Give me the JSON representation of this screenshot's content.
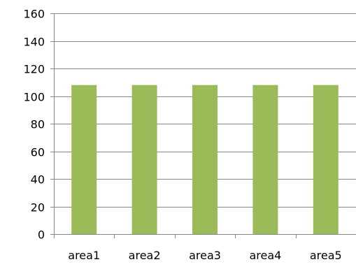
{
  "chart_data": {
    "type": "bar",
    "categories": [
      "area1",
      "area2",
      "area3",
      "area4",
      "area5"
    ],
    "values": [
      108,
      108,
      108,
      108,
      108
    ],
    "ylim": [
      0,
      160
    ],
    "yticks": [
      0,
      20,
      40,
      60,
      80,
      100,
      120,
      140,
      160
    ],
    "grid": true,
    "legend": "none",
    "bar_color": "#9bbb59",
    "axis_color": "#868686",
    "grid_color": "#868686"
  }
}
